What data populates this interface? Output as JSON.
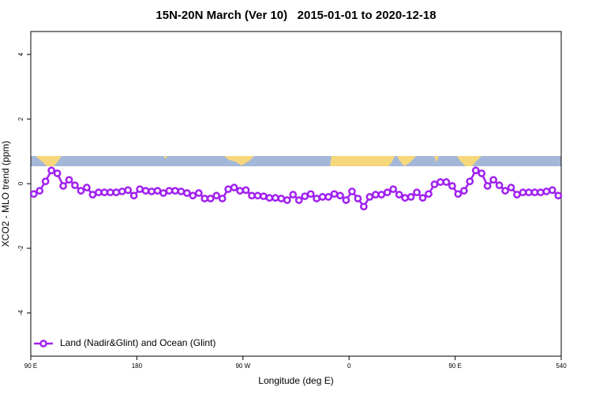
{
  "chart_data": {
    "type": "line",
    "title": "15N-20N March (Ver 10)   2015-01-01 to 2020-12-18",
    "xlabel": "Longitude (deg E)",
    "ylabel": "XCO2 - MLO trend (ppm)",
    "x": [
      92.5,
      97.5,
      102.5,
      107.5,
      112.5,
      117.5,
      122.5,
      127.5,
      132.5,
      137.5,
      142.5,
      147.5,
      152.5,
      157.5,
      162.5,
      167.5,
      172.5,
      177.5,
      182.5,
      187.5,
      192.5,
      197.5,
      202.5,
      207.5,
      212.5,
      217.5,
      222.5,
      227.5,
      232.5,
      237.5,
      242.5,
      247.5,
      252.5,
      257.5,
      262.5,
      267.5,
      272.5,
      277.5,
      282.5,
      287.5,
      292.5,
      297.5,
      302.5,
      307.5,
      312.5,
      317.5,
      322.5,
      327.5,
      332.5,
      337.5,
      342.5,
      347.5,
      352.5,
      357.5,
      362.5,
      367.5,
      372.5,
      377.5,
      382.5,
      387.5,
      392.5,
      397.5,
      402.5,
      407.5,
      412.5,
      417.5,
      422.5,
      427.5,
      432.5,
      437.5,
      442.5,
      447.5,
      452.5,
      457.5,
      462.5,
      467.5,
      472.5,
      477.5,
      482.5,
      487.5,
      492.5,
      497.5,
      502.5,
      507.5,
      512.5,
      517.5,
      522.5,
      527.5,
      532.5,
      537.5
    ],
    "series": [
      {
        "name": "Land (Nadir&Glint) and Ocean (Glint)",
        "color": "#a020f0",
        "values": [
          -0.32,
          -0.22,
          0.07,
          0.41,
          0.32,
          -0.07,
          0.12,
          -0.05,
          -0.22,
          -0.12,
          -0.34,
          -0.27,
          -0.27,
          -0.27,
          -0.27,
          -0.24,
          -0.2,
          -0.37,
          -0.17,
          -0.22,
          -0.24,
          -0.22,
          -0.29,
          -0.22,
          -0.22,
          -0.24,
          -0.29,
          -0.37,
          -0.29,
          -0.46,
          -0.46,
          -0.37,
          -0.46,
          -0.17,
          -0.12,
          -0.22,
          -0.2,
          -0.37,
          -0.37,
          -0.39,
          -0.44,
          -0.44,
          -0.46,
          -0.51,
          -0.34,
          -0.51,
          -0.39,
          -0.32,
          -0.46,
          -0.41,
          -0.41,
          -0.32,
          -0.37,
          -0.51,
          -0.24,
          -0.46,
          -0.71,
          -0.41,
          -0.34,
          -0.34,
          -0.27,
          -0.17,
          -0.34,
          -0.44,
          -0.41,
          -0.27,
          -0.44,
          -0.32,
          -0.02,
          0.05,
          0.05,
          -0.07,
          -0.32,
          -0.22,
          0.07,
          0.41,
          0.32,
          -0.07,
          0.12,
          -0.05,
          -0.22,
          -0.12,
          -0.34,
          -0.27,
          -0.27,
          -0.27,
          -0.27,
          -0.24,
          -0.2,
          -0.37
        ]
      }
    ],
    "xlim": [
      90,
      540
    ],
    "xticks": [
      {
        "value": 90,
        "label": "90 E"
      },
      180,
      {
        "value": 270,
        "label": "90 W"
      },
      {
        "value": 360,
        "label": "0"
      },
      {
        "value": 450,
        "label": "90 E"
      },
      540
    ],
    "ylim": [
      -5.34,
      4.71
    ],
    "yticks": [
      -4,
      -2,
      0,
      2,
      4
    ],
    "legend": "bottom-left"
  }
}
